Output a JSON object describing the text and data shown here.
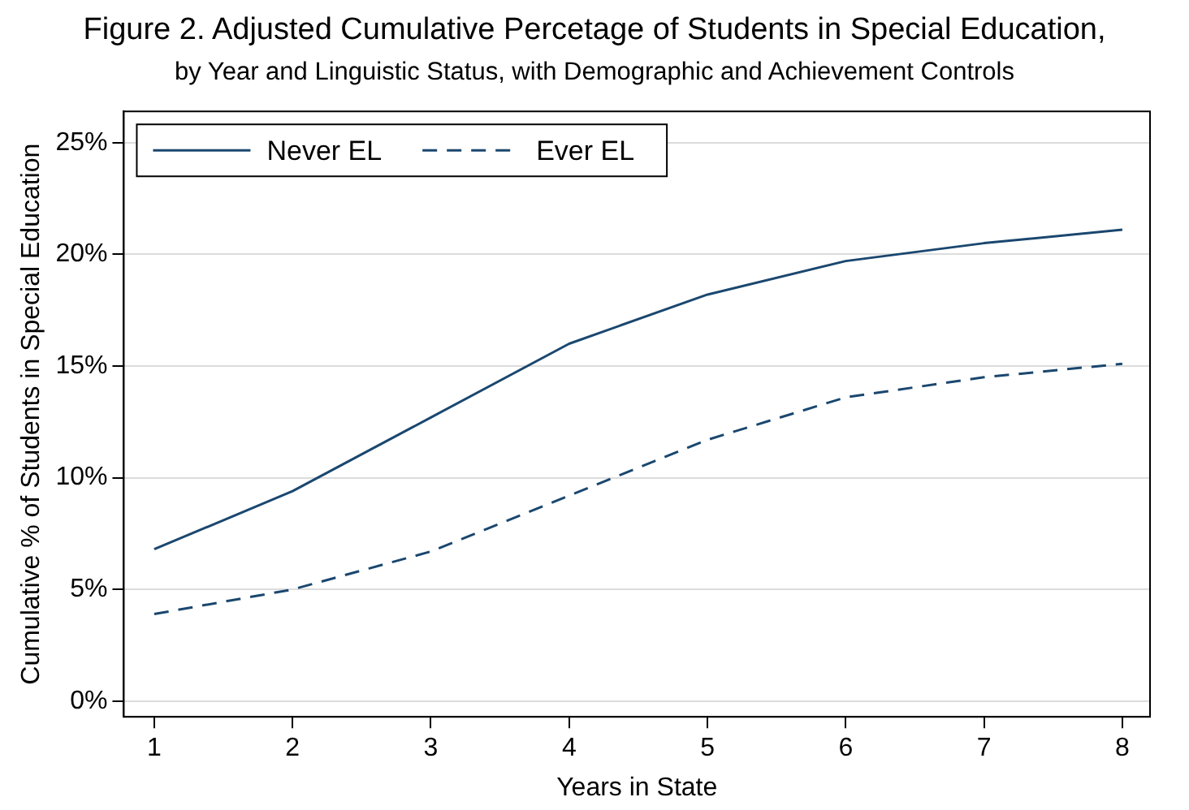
{
  "chart_data": {
    "type": "line",
    "title": "Figure 2. Adjusted Cumulative Percetage of Students in Special Education,",
    "subtitle": "by Year and Linguistic Status, with Demographic and Achievement Controls",
    "xlabel": "Years in State",
    "ylabel": "Cumulative % of Students in Special Education",
    "x": [
      1,
      2,
      3,
      4,
      5,
      6,
      7,
      8
    ],
    "series": [
      {
        "name": "Never EL",
        "color": "#1a476f",
        "line_style": "solid",
        "values": [
          6.8,
          9.4,
          12.7,
          16.0,
          18.2,
          19.7,
          20.5,
          21.1
        ]
      },
      {
        "name": "Ever EL",
        "color": "#1a476f",
        "line_style": "dashed",
        "values": [
          3.9,
          5.0,
          6.7,
          9.2,
          11.7,
          13.6,
          14.5,
          15.1
        ]
      }
    ],
    "xlim": [
      0.78,
      8.2
    ],
    "xticks": [
      1,
      2,
      3,
      4,
      5,
      6,
      7,
      8
    ],
    "ylim": [
      -0.7,
      26.4
    ],
    "yticks": [
      {
        "value": 0,
        "label": "0%"
      },
      {
        "value": 5,
        "label": "5%"
      },
      {
        "value": 10,
        "label": "10%"
      },
      {
        "value": 15,
        "label": "15%"
      },
      {
        "value": 20,
        "label": "20%"
      },
      {
        "value": 25,
        "label": "25%"
      }
    ],
    "grid": "y",
    "legend": "top left",
    "marker": "none"
  }
}
